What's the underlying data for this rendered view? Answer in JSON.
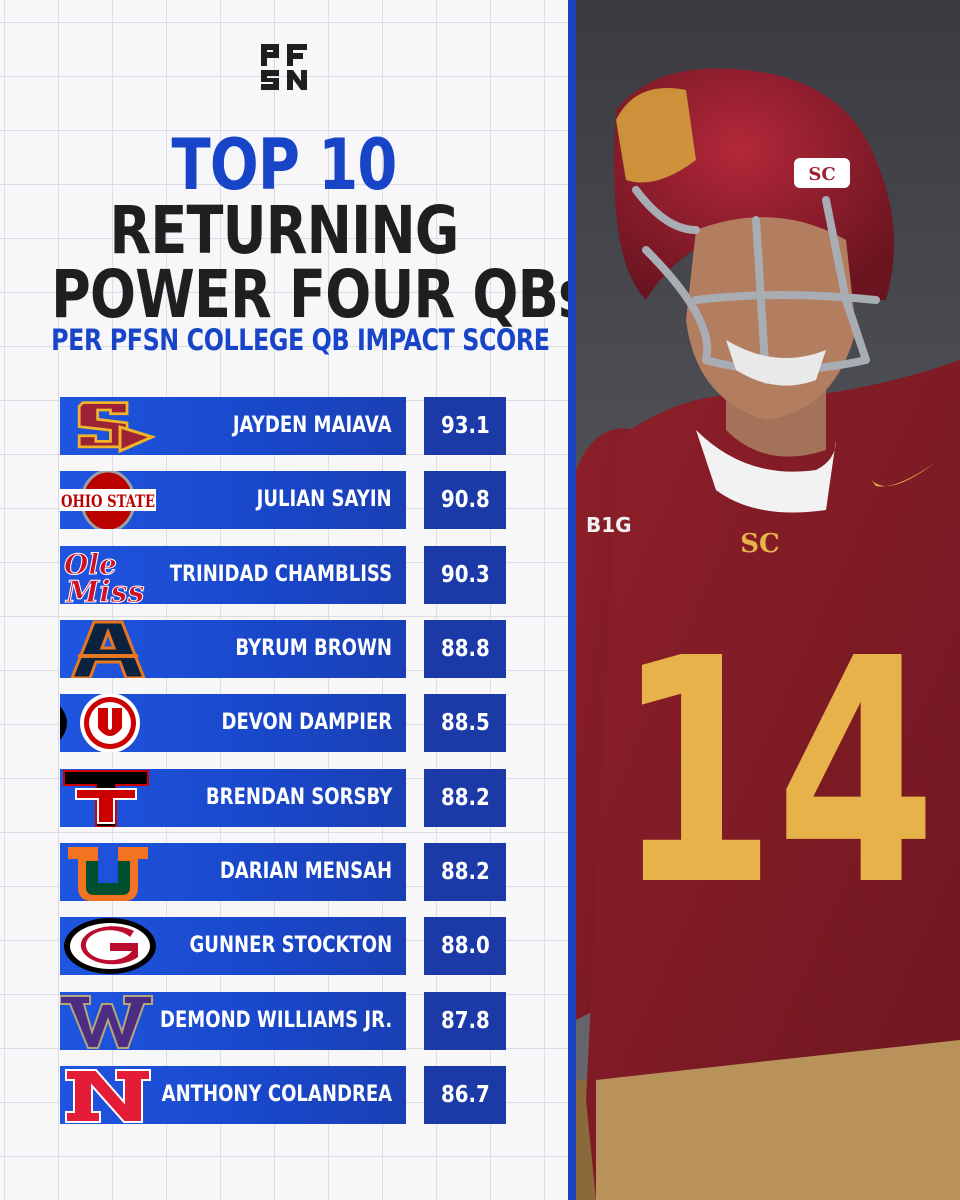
{
  "brand": {
    "logo_text": "PFSN"
  },
  "title": {
    "line1": "TOP 10",
    "line2": "RETURNING",
    "line3": "POWER FOUR QBs",
    "subtitle": "PER PFSN COLLEGE QB IMPACT SCORE"
  },
  "colors": {
    "accent": "#1845c8",
    "row": "#1947c9",
    "score_box": "#1b3aa8",
    "text_dark": "#1f1f22"
  },
  "rows": [
    {
      "name": "JAYDEN MAIAVA",
      "score": "93.1",
      "logo": "usc-logo"
    },
    {
      "name": "JULIAN SAYIN",
      "score": "90.8",
      "logo": "ohio-state-logo"
    },
    {
      "name": "TRINIDAD CHAMBLISS",
      "score": "90.3",
      "logo": "ole-miss-logo"
    },
    {
      "name": "BYRUM BROWN",
      "score": "88.8",
      "logo": "auburn-logo"
    },
    {
      "name": "DEVON DAMPIER",
      "score": "88.5",
      "logo": "utah-logo"
    },
    {
      "name": "BRENDAN SORSBY",
      "score": "88.2",
      "logo": "texas-tech-logo"
    },
    {
      "name": "DARIAN MENSAH",
      "score": "88.2",
      "logo": "miami-logo"
    },
    {
      "name": "GUNNER STOCKTON",
      "score": "88.0",
      "logo": "georgia-logo"
    },
    {
      "name": "DEMOND WILLIAMS JR.",
      "score": "87.8",
      "logo": "washington-logo"
    },
    {
      "name": "ANTHONY COLANDREA",
      "score": "86.7",
      "logo": "nebraska-logo"
    }
  ],
  "photo": {
    "jersey_number": "14",
    "helmet_mark": "SC",
    "chest_mark": "SC",
    "patch": "B1G"
  }
}
